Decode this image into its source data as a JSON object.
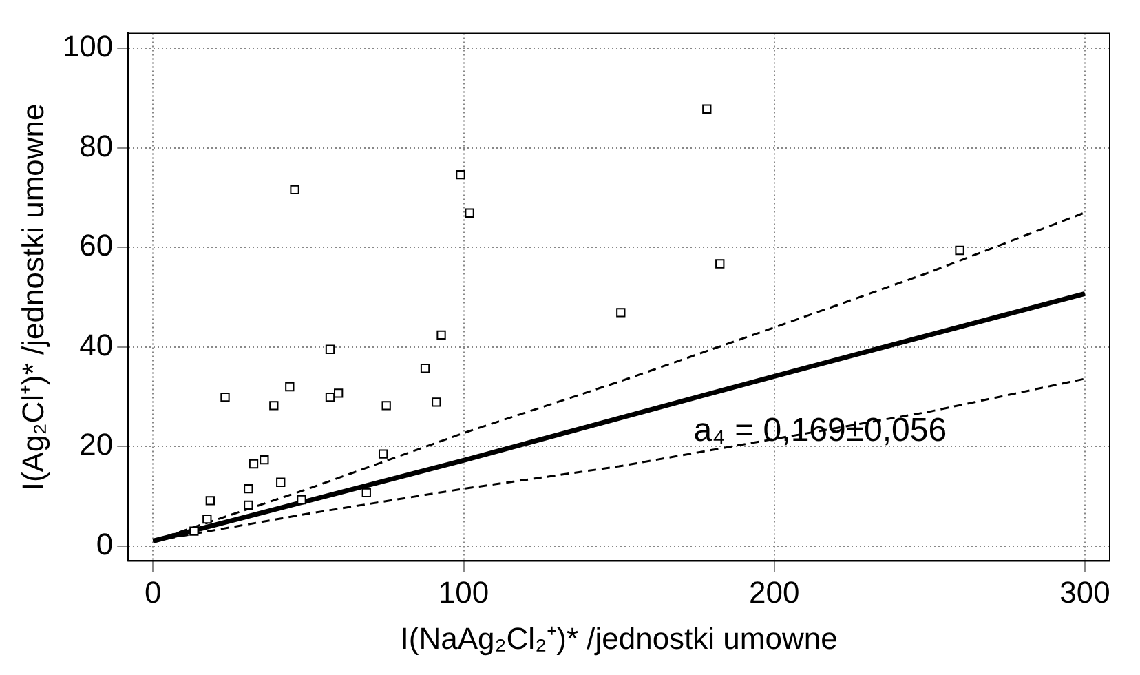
{
  "chart_data": {
    "type": "scatter",
    "xlabel": "I(NaAg₂Cl₂⁺)* /jednostki umowne",
    "ylabel": "I(Ag₂Cl⁺)* /jednostki umowne",
    "xlim": [
      -8,
      308
    ],
    "ylim": [
      -3,
      103
    ],
    "xticks": [
      0,
      100,
      200,
      300
    ],
    "yticks": [
      0,
      20,
      40,
      60,
      80,
      100
    ],
    "grid": true,
    "marker": "square",
    "series": [
      {
        "type": "scatter",
        "color": "#000000",
        "x": [
          45.6,
          99,
          101.9,
          150.6,
          92.8,
          57,
          87.6,
          44,
          23.2,
          57,
          59.7,
          38.9,
          75.1,
          91.2,
          74.1,
          35.8,
          32.4,
          41.1,
          30.7,
          68.7,
          18.4,
          30.7,
          47.8,
          17.4,
          13.2,
          178.3,
          182.5,
          259.7
        ],
        "values": [
          71.6,
          74.6,
          66.9,
          46.9,
          42.4,
          39.5,
          35.7,
          32,
          29.9,
          29.9,
          30.7,
          28.2,
          28.2,
          28.9,
          18.5,
          17.3,
          16.5,
          12.8,
          11.5,
          10.7,
          9.1,
          8.2,
          9.3,
          5.4,
          3,
          87.8,
          56.7,
          59.4
        ]
      },
      {
        "type": "line",
        "color": "#000000",
        "line_style": "solid",
        "marker": "none",
        "x": [
          0,
          100,
          200,
          300
        ],
        "values": [
          1,
          17.2,
          34.1,
          50.7
        ]
      },
      {
        "type": "line",
        "color": "#000000",
        "line_style": "dashed",
        "marker": "none",
        "x": [
          0,
          50,
          100,
          150,
          200,
          250,
          300
        ],
        "values": [
          1,
          11.5,
          22.7,
          33,
          43.9,
          55,
          67
        ]
      },
      {
        "type": "line",
        "color": "#000000",
        "line_style": "dashed",
        "marker": "none",
        "x": [
          0,
          50,
          100,
          150,
          200,
          250,
          300
        ],
        "values": [
          1,
          6.5,
          11.5,
          16,
          21.5,
          27,
          33.6
        ]
      }
    ],
    "annotations": [
      "a₄ = 0,169±0,056"
    ]
  }
}
